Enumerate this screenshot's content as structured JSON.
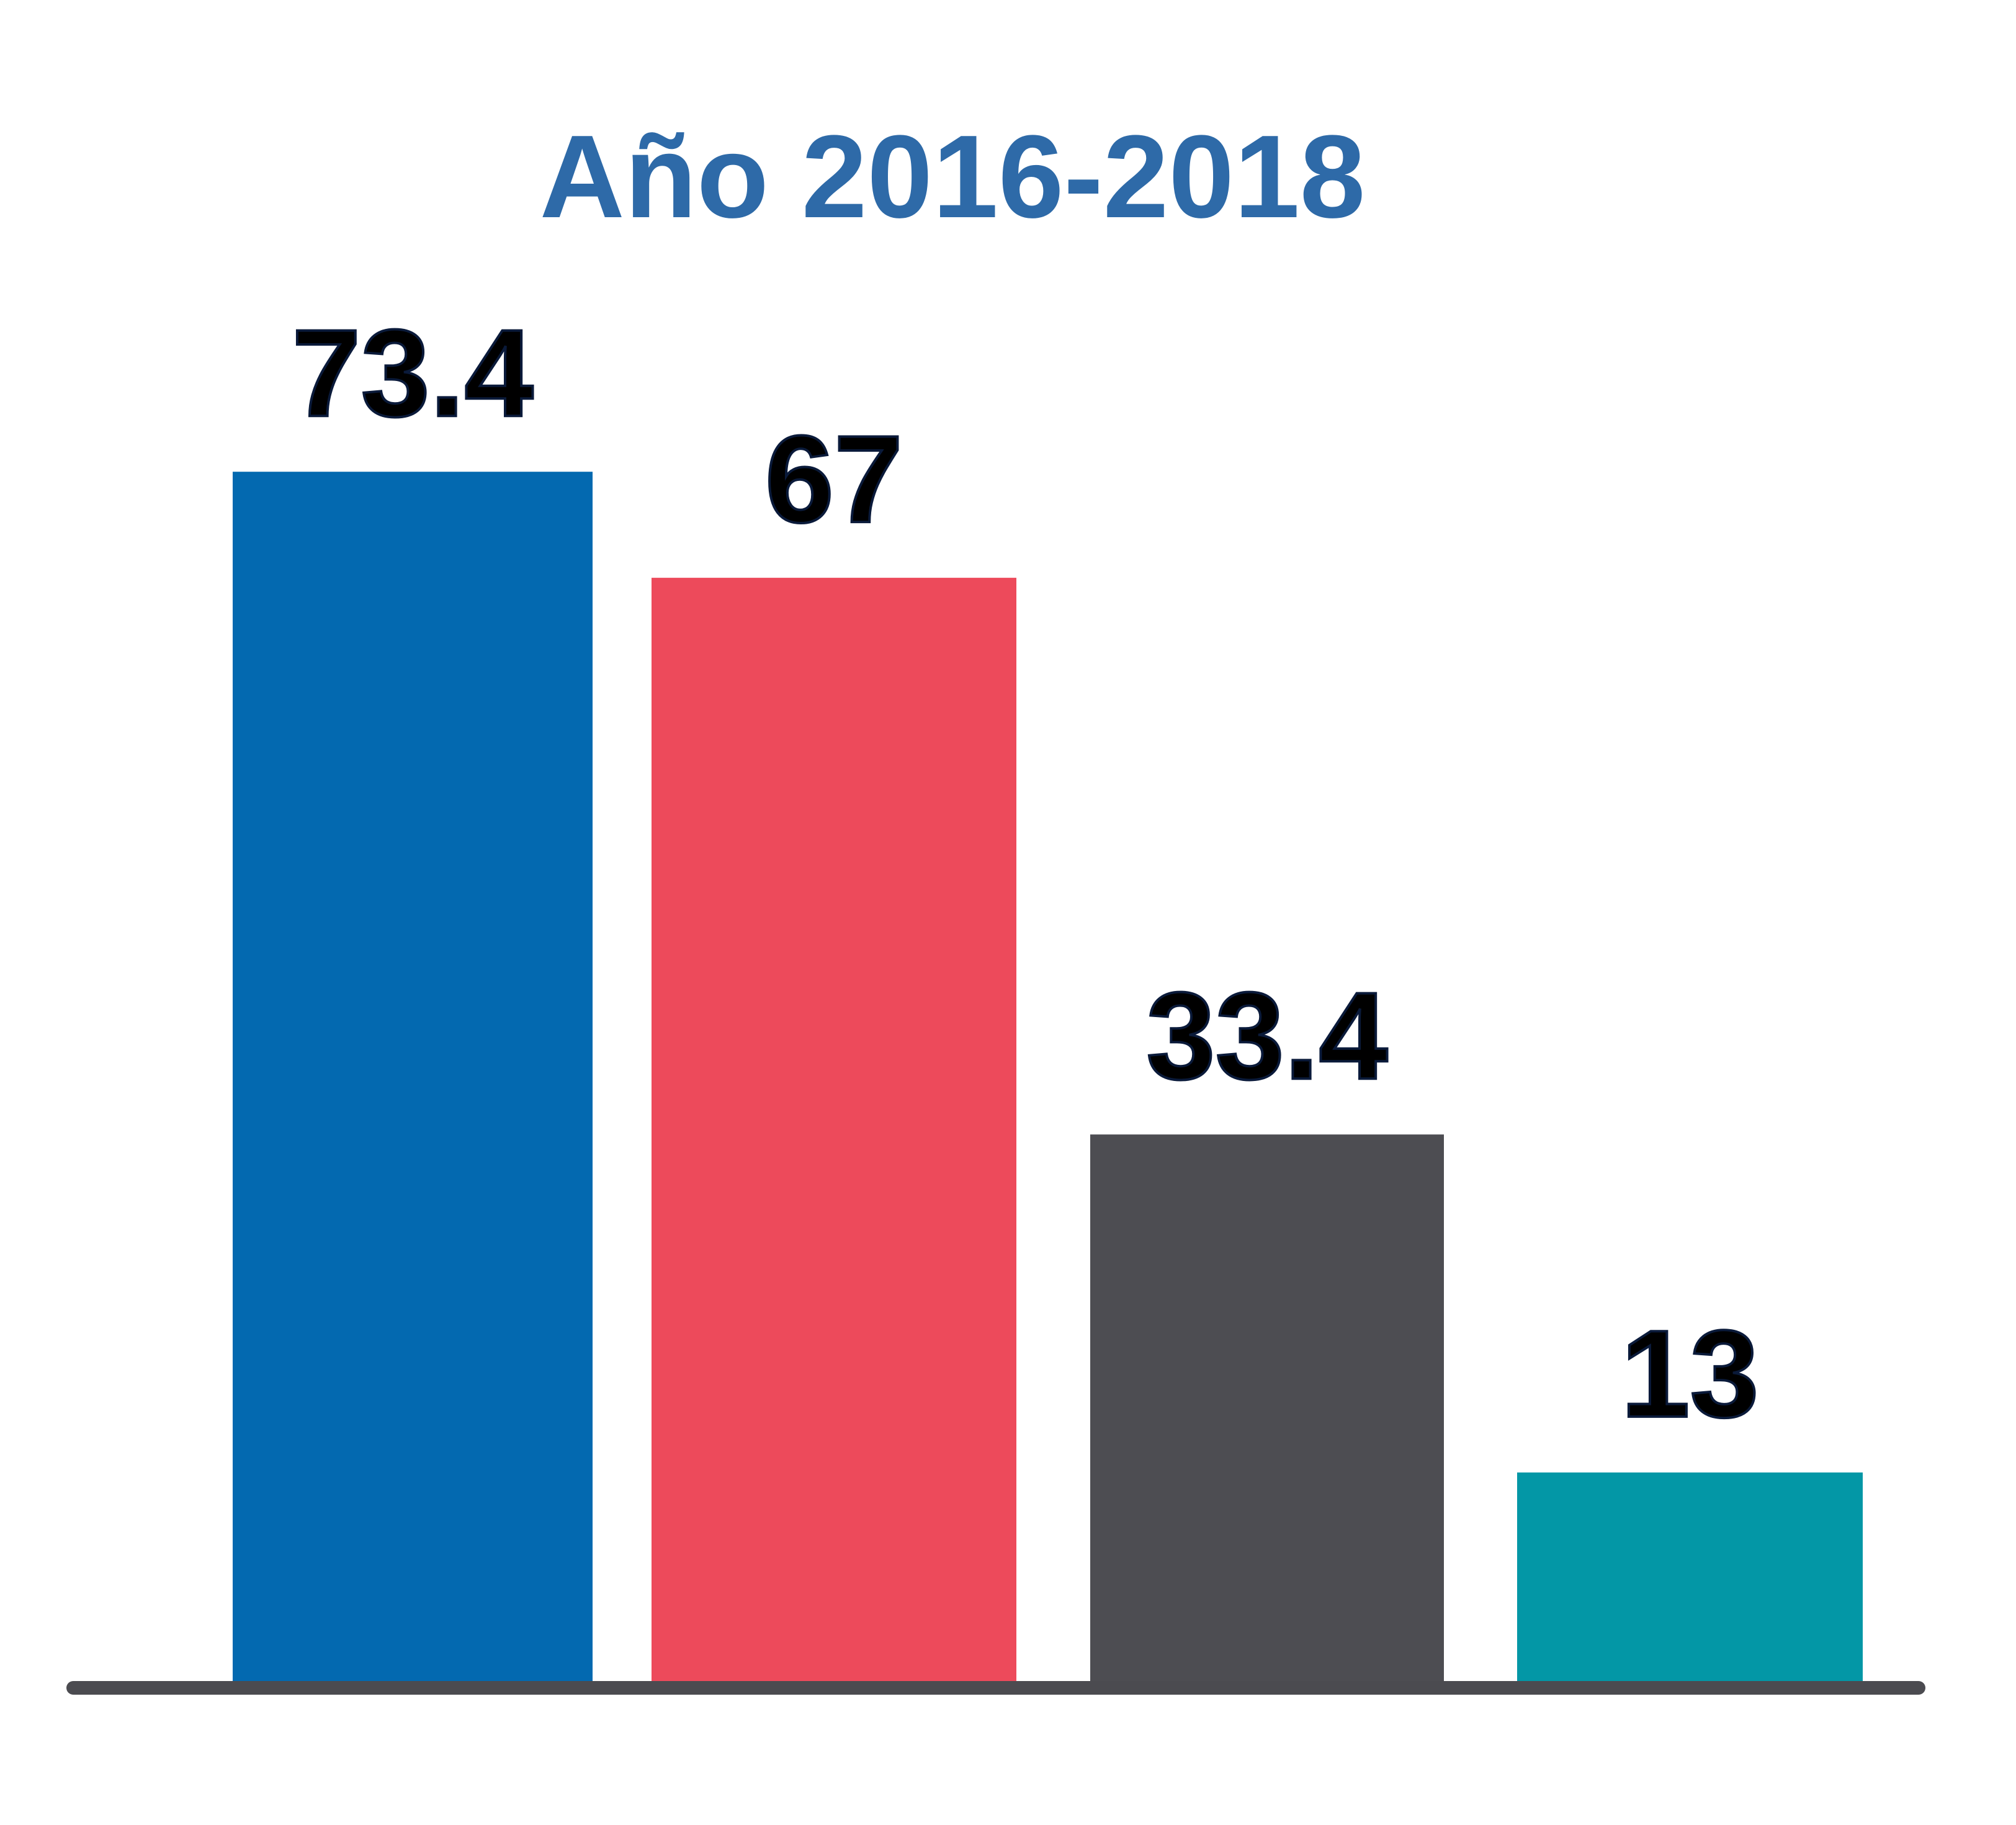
{
  "chart_data": {
    "type": "bar",
    "title": "Año 2016-2018",
    "title_color": "#2e6aa8",
    "xlabel": "",
    "ylabel": "",
    "ylim": [
      0,
      100
    ],
    "grid": false,
    "axis_color": "#4b4b50",
    "values": [
      73.4,
      67,
      33.4,
      13
    ],
    "labels": [
      "73.4",
      "67",
      "33.4",
      "13"
    ],
    "colors": [
      "#0369b0",
      "#ed4a5b",
      "#4d4d52",
      "#0397a6"
    ]
  }
}
